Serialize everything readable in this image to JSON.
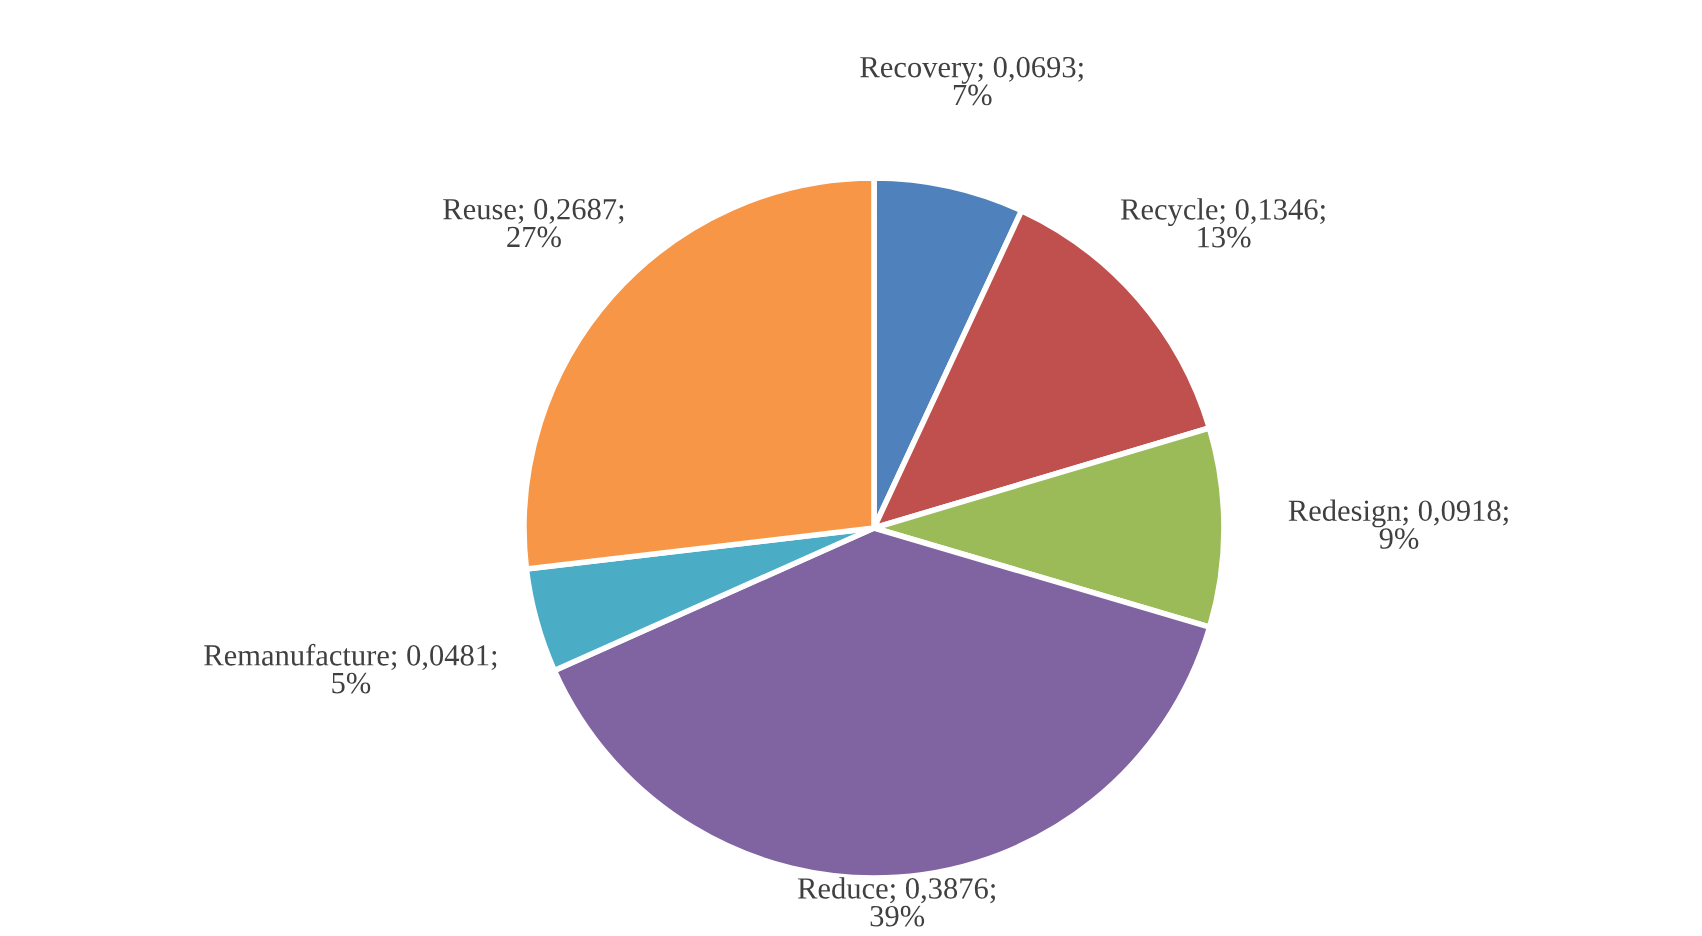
{
  "chart_data": {
    "type": "pie",
    "categories": [
      "Recovery",
      "Recycle",
      "Redesign",
      "Reduce",
      "Remanufacture",
      "Reuse"
    ],
    "values": [
      0.0693,
      0.1346,
      0.0918,
      0.3876,
      0.0481,
      0.2687
    ],
    "value_labels": [
      "0,0693; 7%",
      "0,1346; 13%",
      "0,0918; 9%",
      "0,3876; 39%",
      "0,0481; 5%",
      "0,2687; 27%"
    ],
    "colors": [
      "#4f81bd",
      "#c0504d",
      "#9bbb59",
      "#8064a2",
      "#4bacc6",
      "#f79646"
    ]
  }
}
